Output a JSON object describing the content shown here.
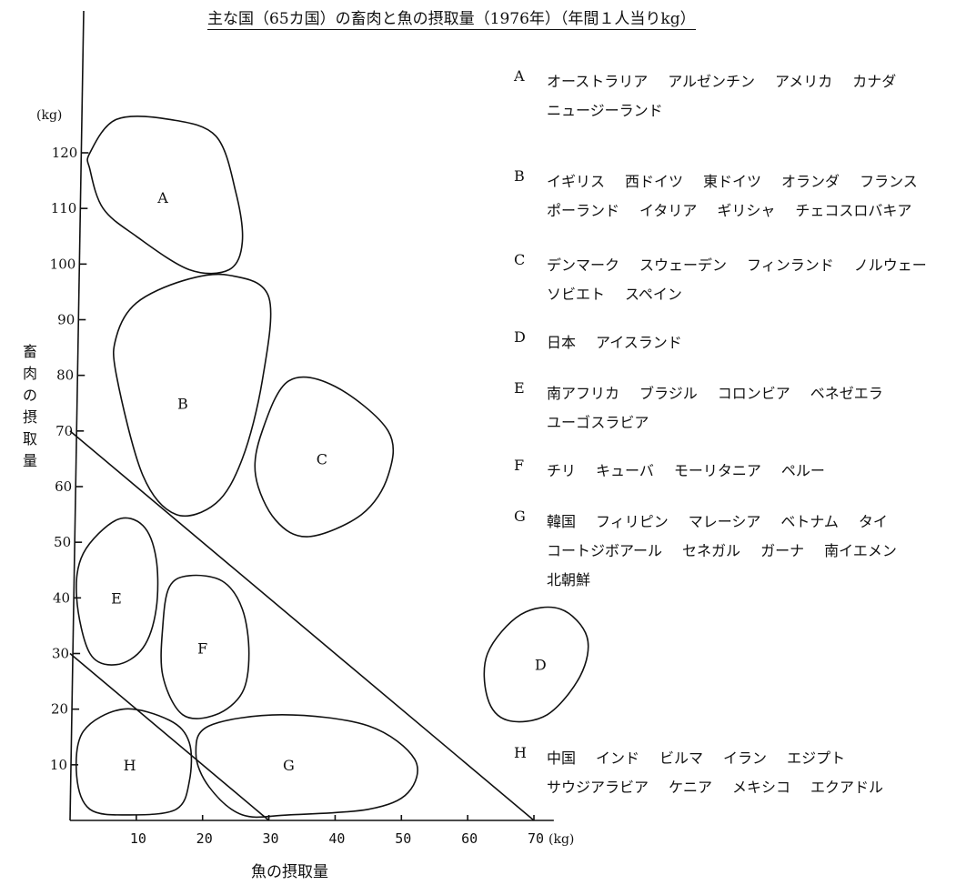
{
  "title": "主な国（65カ国）の畜肉と魚の摂取量（1976年）（年間１人当りkg）",
  "chart_data": {
    "type": "scatter",
    "xlabel": "魚の摂取量",
    "ylabel": "畜肉の摂取量",
    "x_unit": "(kg)",
    "y_unit": "(kg)",
    "xlim": [
      0,
      73
    ],
    "ylim": [
      0,
      130
    ],
    "x_ticks": [
      10,
      20,
      30,
      40,
      50,
      60,
      70
    ],
    "y_ticks": [
      10,
      20,
      30,
      40,
      50,
      60,
      70,
      80,
      90,
      100,
      110,
      120
    ],
    "grid": false,
    "reference_lines": [
      {
        "from": [
          0,
          70
        ],
        "to": [
          70,
          0
        ]
      },
      {
        "from": [
          0,
          30
        ],
        "to": [
          30,
          0
        ]
      }
    ],
    "groups": [
      {
        "label": "A",
        "center": [
          14,
          112
        ],
        "outline": [
          [
            3,
            120
          ],
          [
            7,
            126
          ],
          [
            15,
            126
          ],
          [
            22,
            123
          ],
          [
            25,
            113
          ],
          [
            26,
            104
          ],
          [
            24,
            99
          ],
          [
            18,
            99
          ],
          [
            10,
            105
          ],
          [
            5,
            110
          ],
          [
            3,
            117
          ]
        ]
      },
      {
        "label": "B",
        "center": [
          17,
          75
        ],
        "outline": [
          [
            10,
            93
          ],
          [
            17,
            97
          ],
          [
            24,
            98
          ],
          [
            30,
            94
          ],
          [
            29,
            79
          ],
          [
            26,
            65
          ],
          [
            22,
            57
          ],
          [
            16,
            55
          ],
          [
            11,
            62
          ],
          [
            7,
            80
          ],
          [
            7,
            87
          ]
        ]
      },
      {
        "label": "C",
        "center": [
          38,
          65
        ],
        "outline": [
          [
            33,
            79
          ],
          [
            40,
            78
          ],
          [
            48,
            70
          ],
          [
            48,
            62
          ],
          [
            44,
            55
          ],
          [
            36,
            51
          ],
          [
            31,
            54
          ],
          [
            28,
            62
          ],
          [
            29,
            70
          ]
        ]
      },
      {
        "label": "D",
        "center": [
          71,
          28
        ],
        "outline": [
          [
            68,
            37
          ],
          [
            74,
            38
          ],
          [
            78,
            33
          ],
          [
            77,
            26
          ],
          [
            72,
            19
          ],
          [
            66,
            18
          ],
          [
            63,
            22
          ],
          [
            63,
            30
          ]
        ]
      },
      {
        "label": "E",
        "center": [
          7,
          40
        ],
        "outline": [
          [
            7,
            54
          ],
          [
            11,
            53
          ],
          [
            13,
            47
          ],
          [
            13,
            38
          ],
          [
            11,
            31
          ],
          [
            7,
            28
          ],
          [
            3,
            30
          ],
          [
            1,
            40
          ],
          [
            2,
            48
          ]
        ]
      },
      {
        "label": "F",
        "center": [
          20,
          31
        ],
        "outline": [
          [
            18,
            44
          ],
          [
            23,
            43
          ],
          [
            26,
            38
          ],
          [
            27,
            30
          ],
          [
            26,
            23
          ],
          [
            22,
            19
          ],
          [
            17,
            19
          ],
          [
            14,
            26
          ],
          [
            14,
            35
          ],
          [
            15,
            42
          ]
        ]
      },
      {
        "label": "G",
        "center": [
          33,
          10
        ],
        "outline": [
          [
            21,
            17
          ],
          [
            32,
            19
          ],
          [
            45,
            17
          ],
          [
            52,
            11
          ],
          [
            51,
            5
          ],
          [
            45,
            2
          ],
          [
            33,
            1
          ],
          [
            26,
            1
          ],
          [
            21,
            6
          ],
          [
            19,
            12
          ]
        ]
      },
      {
        "label": "H",
        "center": [
          9,
          10
        ],
        "outline": [
          [
            8,
            20
          ],
          [
            15,
            18
          ],
          [
            18,
            14
          ],
          [
            18,
            7
          ],
          [
            16,
            2
          ],
          [
            9,
            1
          ],
          [
            3,
            2
          ],
          [
            1,
            8
          ],
          [
            2,
            16
          ]
        ]
      }
    ]
  },
  "legend": [
    {
      "letter": "A",
      "countries": [
        "オーストラリア",
        "アルゼンチン",
        "アメリカ",
        "カナダ",
        "ニュージーランド"
      ]
    },
    {
      "letter": "B",
      "countries": [
        "イギリス",
        "西ドイツ",
        "東ドイツ",
        "オランダ",
        "フランス",
        "ポーランド",
        "イタリア",
        "ギリシャ",
        "チェコスロバキア"
      ]
    },
    {
      "letter": "C",
      "countries": [
        "デンマーク",
        "スウェーデン",
        "フィンランド",
        "ノルウェー",
        "ソビエト",
        "スペイン"
      ]
    },
    {
      "letter": "D",
      "countries": [
        "日本",
        "アイスランド"
      ]
    },
    {
      "letter": "E",
      "countries": [
        "南アフリカ",
        "ブラジル",
        "コロンビア",
        "ベネゼエラ",
        "ユーゴスラビア"
      ]
    },
    {
      "letter": "F",
      "countries": [
        "チリ",
        "キューバ",
        "モーリタニア",
        "ペルー"
      ]
    },
    {
      "letter": "G",
      "countries": [
        "韓国",
        "フィリピン",
        "マレーシア",
        "ベトナム",
        "タイ",
        "コートジボアール",
        "セネガル",
        "ガーナ",
        "南イエメン",
        "北朝鮮"
      ]
    },
    {
      "letter": "H",
      "countries": [
        "中国",
        "インド",
        "ビルマ",
        "イラン",
        "エジプト",
        "サウジアラビア",
        "ケニア",
        "メキシコ",
        "エクアドル"
      ]
    }
  ]
}
